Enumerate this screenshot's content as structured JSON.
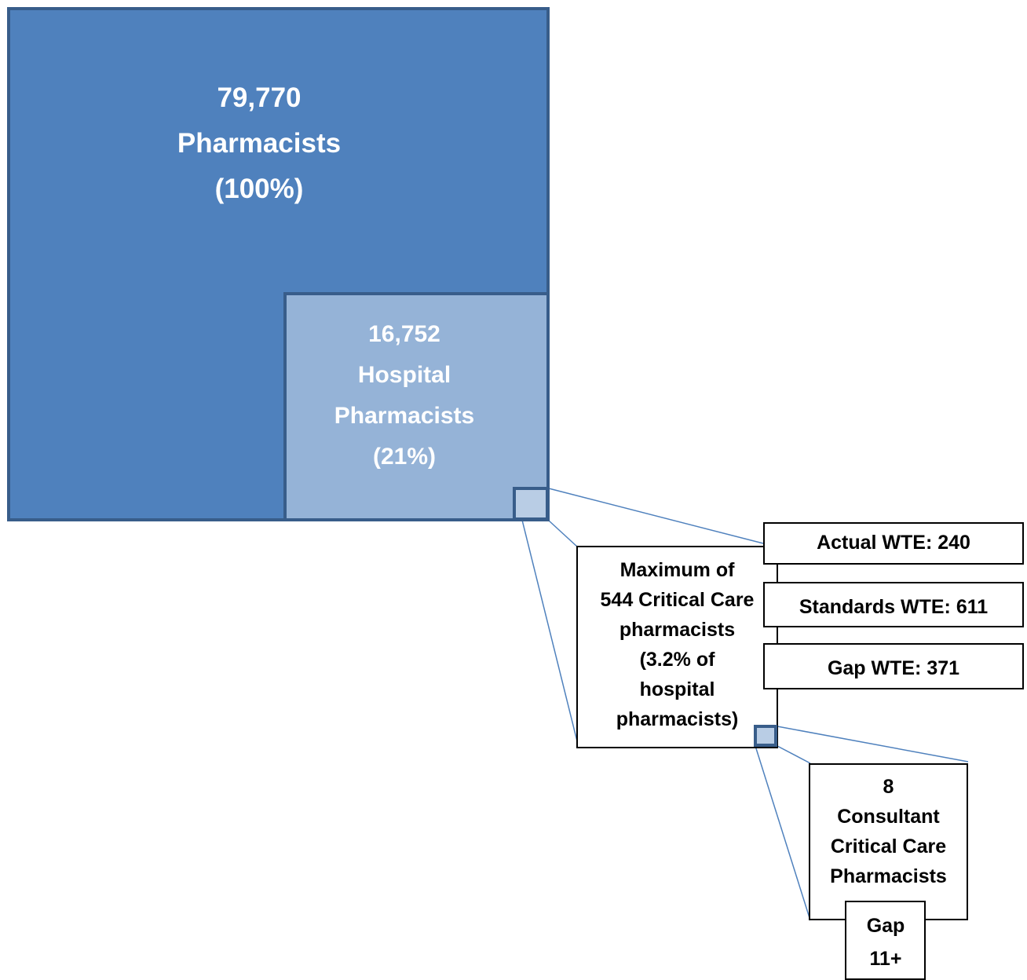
{
  "total": {
    "count": "79,770",
    "label": "Pharmacists",
    "percent": "(100%)"
  },
  "hospital": {
    "count": "16,752",
    "label_line1": "Hospital",
    "label_line2": "Pharmacists",
    "percent": "(21%)"
  },
  "critical_care": {
    "lines": [
      "Maximum of",
      "544 Critical Care",
      "pharmacists",
      "(3.2% of",
      "hospital",
      "pharmacists)"
    ]
  },
  "wte": {
    "actual": "Actual WTE: 240",
    "standards": "Standards WTE: 611",
    "gap": "Gap WTE: 371"
  },
  "consultant": {
    "count": "8",
    "line1": "Consultant",
    "line2": "Critical Care",
    "line3": "Pharmacists"
  },
  "consultant_gap": {
    "line1": "Gap",
    "line2": "11+"
  },
  "colors": {
    "dark_blue": "#4f81bd",
    "mid_blue": "#95b3d7",
    "light_blue": "#b9cde5",
    "border_blue": "#385d8a",
    "connector_blue": "#4f81bd"
  }
}
